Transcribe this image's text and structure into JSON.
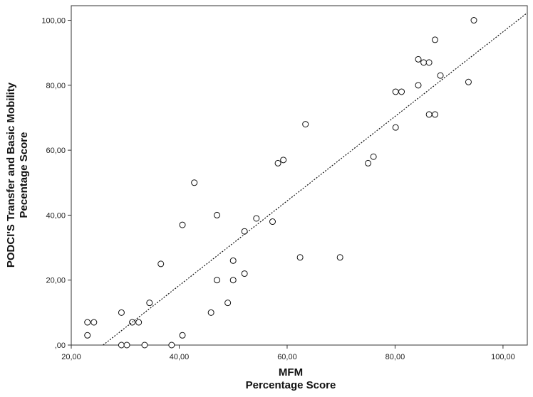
{
  "chart_data": {
    "type": "scatter",
    "xlabel": [
      "MFM",
      "Percentage Score"
    ],
    "ylabel": [
      "PODCI'S Transfer and Basic Mobility",
      "Pecentage Score"
    ],
    "xlim": [
      20,
      104.5
    ],
    "ylim": [
      0,
      104.5
    ],
    "x_ticks": [
      20,
      40,
      60,
      80,
      100
    ],
    "x_tick_labels": [
      "20,00",
      "40,00",
      "60,00",
      "80,00",
      "100,00"
    ],
    "y_ticks": [
      0,
      20,
      40,
      60,
      80,
      100
    ],
    "y_tick_labels": [
      ",00",
      "20,00",
      "40,00",
      "60,00",
      "80,00",
      "100,00"
    ],
    "grid": false,
    "fit_line": {
      "style": "dotted",
      "x": [
        25.9,
        104.5
      ],
      "y": [
        0,
        102.3
      ]
    },
    "points": [
      {
        "x": 23.0,
        "y": 7
      },
      {
        "x": 24.2,
        "y": 7
      },
      {
        "x": 23.0,
        "y": 3
      },
      {
        "x": 29.3,
        "y": 10
      },
      {
        "x": 29.3,
        "y": 0
      },
      {
        "x": 30.3,
        "y": 0
      },
      {
        "x": 31.3,
        "y": 7
      },
      {
        "x": 32.5,
        "y": 7
      },
      {
        "x": 33.6,
        "y": 0
      },
      {
        "x": 34.5,
        "y": 13
      },
      {
        "x": 36.6,
        "y": 25
      },
      {
        "x": 38.6,
        "y": 0
      },
      {
        "x": 40.6,
        "y": 3
      },
      {
        "x": 40.6,
        "y": 37
      },
      {
        "x": 42.8,
        "y": 50
      },
      {
        "x": 45.9,
        "y": 10
      },
      {
        "x": 47.0,
        "y": 40
      },
      {
        "x": 47.0,
        "y": 20
      },
      {
        "x": 49.0,
        "y": 13
      },
      {
        "x": 50.0,
        "y": 26
      },
      {
        "x": 50.0,
        "y": 20
      },
      {
        "x": 52.1,
        "y": 35
      },
      {
        "x": 52.1,
        "y": 22
      },
      {
        "x": 54.3,
        "y": 39
      },
      {
        "x": 57.3,
        "y": 38
      },
      {
        "x": 58.3,
        "y": 56
      },
      {
        "x": 59.3,
        "y": 57
      },
      {
        "x": 62.4,
        "y": 27
      },
      {
        "x": 63.4,
        "y": 68
      },
      {
        "x": 69.8,
        "y": 27
      },
      {
        "x": 75.0,
        "y": 56
      },
      {
        "x": 76.0,
        "y": 58
      },
      {
        "x": 80.1,
        "y": 67
      },
      {
        "x": 80.1,
        "y": 78
      },
      {
        "x": 81.2,
        "y": 78
      },
      {
        "x": 84.3,
        "y": 80
      },
      {
        "x": 84.3,
        "y": 88
      },
      {
        "x": 85.3,
        "y": 87
      },
      {
        "x": 86.3,
        "y": 87
      },
      {
        "x": 86.3,
        "y": 71
      },
      {
        "x": 87.4,
        "y": 71
      },
      {
        "x": 87.4,
        "y": 94
      },
      {
        "x": 88.4,
        "y": 83
      },
      {
        "x": 93.6,
        "y": 81
      },
      {
        "x": 94.6,
        "y": 100
      }
    ]
  }
}
